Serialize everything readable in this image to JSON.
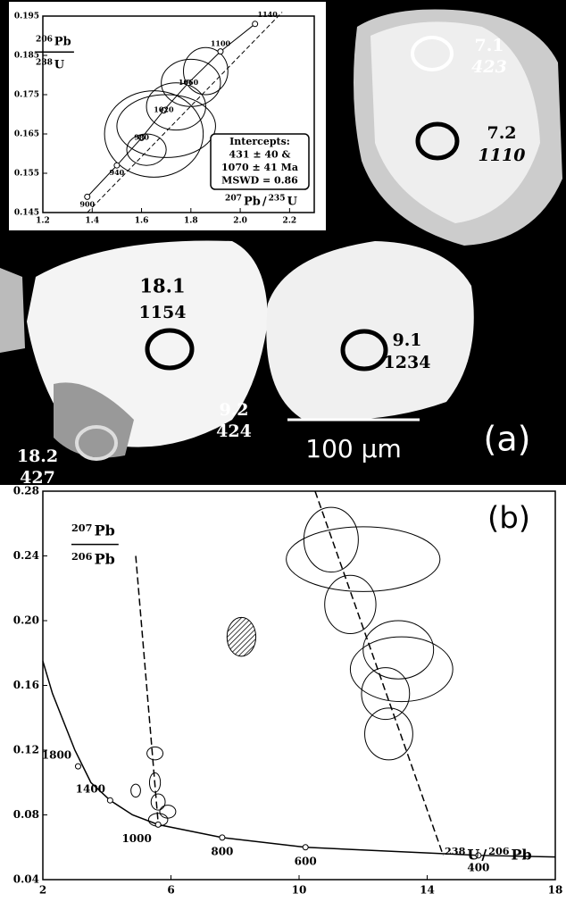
{
  "image_panel": {
    "panel_label": "(a)",
    "scale_bar": "100 µm",
    "spots": [
      {
        "id": "7.1",
        "age": "423"
      },
      {
        "id": "7.2",
        "age": "1110"
      },
      {
        "id": "18.1",
        "age": "1154"
      },
      {
        "id": "9.1",
        "age": "1234"
      },
      {
        "id": "9.2",
        "age": "424"
      },
      {
        "id": "18.2",
        "age": "427"
      }
    ]
  },
  "chart_data": [
    {
      "type": "concordia",
      "xlim": [
        1.2,
        2.3
      ],
      "ylim": [
        0.145,
        0.195
      ],
      "xticks": [
        {
          "value": 1.2,
          "label": "1.2"
        },
        {
          "value": 1.4,
          "label": "1.4"
        },
        {
          "value": 1.6,
          "label": "1.6"
        },
        {
          "value": 1.8,
          "label": "1.8"
        },
        {
          "value": 2,
          "label": "2.0"
        },
        {
          "value": 2.2,
          "label": "2.2"
        }
      ],
      "yticks": [
        0.145,
        0.155,
        0.165,
        0.175,
        0.185,
        0.195
      ],
      "y_label": {
        "top_mass": "206",
        "top_element": "Pb",
        "bottom_mass": "238",
        "bottom_element": "U"
      },
      "x_label": {
        "num_mass": "207",
        "num_element": "Pb",
        "separator": "/",
        "den_mass": "235",
        "den_element": "U"
      },
      "annotation": [
        "Intercepts:",
        "431 ± 40 &",
        "1070 ± 41 Ma",
        "MSWD = 0.86"
      ],
      "ages": [
        900,
        940,
        980,
        1020,
        1060,
        1100,
        1140
      ],
      "age_x": [
        1.38,
        1.5,
        1.6,
        1.69,
        1.79,
        1.92,
        2.06
      ],
      "age_y": [
        0.149,
        0.157,
        0.164,
        0.171,
        0.178,
        0.186,
        0.193
      ],
      "discordia": {
        "x": [
          1.38,
          2.17
        ],
        "y": [
          0.145,
          0.196
        ]
      },
      "ellipses": [
        {
          "x": 1.86,
          "y": 0.181,
          "rx": 0.09,
          "ry": 0.006
        },
        {
          "x": 1.8,
          "y": 0.178,
          "rx": 0.12,
          "ry": 0.006
        },
        {
          "x": 1.74,
          "y": 0.172,
          "rx": 0.12,
          "ry": 0.006
        },
        {
          "x": 1.7,
          "y": 0.167,
          "rx": 0.2,
          "ry": 0.008
        },
        {
          "x": 1.65,
          "y": 0.165,
          "rx": 0.2,
          "ry": 0.011
        },
        {
          "x": 1.62,
          "y": 0.161,
          "rx": 0.08,
          "ry": 0.004
        }
      ]
    },
    {
      "type": "tera-wasserburg",
      "panel_label": "(b)",
      "xlim": [
        2,
        18
      ],
      "ylim": [
        0.04,
        0.28
      ],
      "xticks": [
        2,
        6,
        10,
        14,
        18
      ],
      "yticks": [
        0.04,
        0.08,
        0.12,
        0.16,
        {
          "value": 0.2,
          "label": "0.20"
        },
        0.24,
        0.28
      ],
      "y_label": {
        "top_mass": "207",
        "top_element": "Pb",
        "bottom_mass": "206",
        "bottom_element": "Pb"
      },
      "x_label": {
        "num_mass": "238",
        "num_element": "U",
        "separator": "/",
        "den_mass": "206",
        "den_element": "Pb"
      },
      "curve": {
        "x": [
          2,
          2.3,
          2.6,
          3,
          3.5,
          4.1,
          4.8,
          5.6,
          7.6,
          10.2,
          15.6,
          18
        ],
        "y": [
          0.175,
          0.155,
          0.14,
          0.12,
          0.1,
          0.089,
          0.08,
          0.074,
          0.066,
          0.06,
          0.055,
          0.054
        ]
      },
      "ages": [
        1800,
        1400,
        1000,
        800,
        600,
        400
      ],
      "age_x": [
        3.1,
        4.1,
        5.6,
        7.6,
        10.2,
        15.6
      ],
      "age_y": [
        0.11,
        0.089,
        0.074,
        0.066,
        0.06,
        0.055
      ],
      "discordia": [
        {
          "x": [
            4.9,
            5.6
          ],
          "y": [
            0.24,
            0.075
          ]
        },
        {
          "x": [
            10.5,
            14.5
          ],
          "y": [
            0.28,
            0.055
          ]
        }
      ],
      "ellipses": [
        {
          "x": 11,
          "y": 0.25,
          "rx": 0.85,
          "ry": 0.02
        },
        {
          "x": 12,
          "y": 0.238,
          "rx": 2.4,
          "ry": 0.02
        },
        {
          "x": 11.6,
          "y": 0.21,
          "rx": 0.8,
          "ry": 0.018
        },
        {
          "x": 13.1,
          "y": 0.182,
          "rx": 1.1,
          "ry": 0.018
        },
        {
          "x": 13.2,
          "y": 0.17,
          "rx": 1.6,
          "ry": 0.02
        },
        {
          "x": 12.7,
          "y": 0.155,
          "rx": 0.75,
          "ry": 0.016
        },
        {
          "x": 12.8,
          "y": 0.13,
          "rx": 0.75,
          "ry": 0.016
        },
        {
          "x": 5.5,
          "y": 0.118,
          "rx": 0.25,
          "ry": 0.004
        },
        {
          "x": 5.5,
          "y": 0.1,
          "rx": 0.17,
          "ry": 0.006
        },
        {
          "x": 4.9,
          "y": 0.095,
          "rx": 0.15,
          "ry": 0.004
        },
        {
          "x": 5.6,
          "y": 0.088,
          "rx": 0.22,
          "ry": 0.005
        },
        {
          "x": 5.9,
          "y": 0.082,
          "rx": 0.25,
          "ry": 0.004
        },
        {
          "x": 5.6,
          "y": 0.077,
          "rx": 0.3,
          "ry": 0.004
        }
      ],
      "hatched": {
        "x": 8.2,
        "y": 0.19,
        "rx": 0.45,
        "ry": 0.012
      }
    }
  ]
}
